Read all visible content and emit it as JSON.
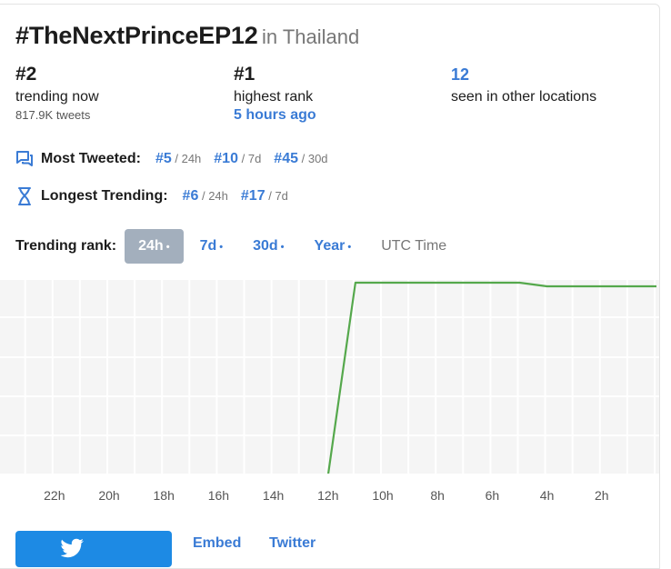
{
  "header": {
    "hashtag": "#TheNextPrinceEP12",
    "location": "in Thailand"
  },
  "stats": {
    "current": {
      "rank": "#2",
      "label": "trending now",
      "sub": "817.9K tweets"
    },
    "highest": {
      "rank": "#1",
      "label": "highest rank",
      "when": "5 hours ago"
    },
    "locations": {
      "count": "12",
      "label": "seen in other locations"
    }
  },
  "most_tweeted": {
    "title": "Most Tweeted:",
    "icon": "chat-bubbles-icon",
    "ranks": [
      {
        "rank": "#5",
        "period": "/ 24h"
      },
      {
        "rank": "#10",
        "period": "/ 7d"
      },
      {
        "rank": "#45",
        "period": "/ 30d"
      }
    ]
  },
  "longest_trending": {
    "title": "Longest Trending:",
    "icon": "hourglass-icon",
    "ranks": [
      {
        "rank": "#6",
        "period": "/ 24h"
      },
      {
        "rank": "#17",
        "period": "/ 7d"
      }
    ]
  },
  "trending_rank": {
    "label": "Trending rank:",
    "tabs": [
      {
        "label": "24h",
        "dot": "•",
        "active": true
      },
      {
        "label": "7d",
        "dot": "•"
      },
      {
        "label": "30d",
        "dot": "•"
      },
      {
        "label": "Year",
        "dot": "•"
      }
    ],
    "utc": "UTC Time"
  },
  "chart_data": {
    "type": "line",
    "x_labels": [
      "22h",
      "20h",
      "18h",
      "16h",
      "14h",
      "12h",
      "10h",
      "8h",
      "6h",
      "4h",
      "2h"
    ],
    "series": [
      {
        "values": [
          {
            "hours_ago": 12,
            "rank": 50
          },
          {
            "hours_ago": 11,
            "rank": 1
          },
          {
            "hours_ago": 5,
            "rank": 1
          },
          {
            "hours_ago": 4,
            "rank": 2
          },
          {
            "hours_ago": 0,
            "rank": 2
          }
        ]
      }
    ],
    "line_color": "#55a84c",
    "grid": true
  },
  "footer": {
    "links": [
      "Embed",
      "Twitter"
    ]
  }
}
